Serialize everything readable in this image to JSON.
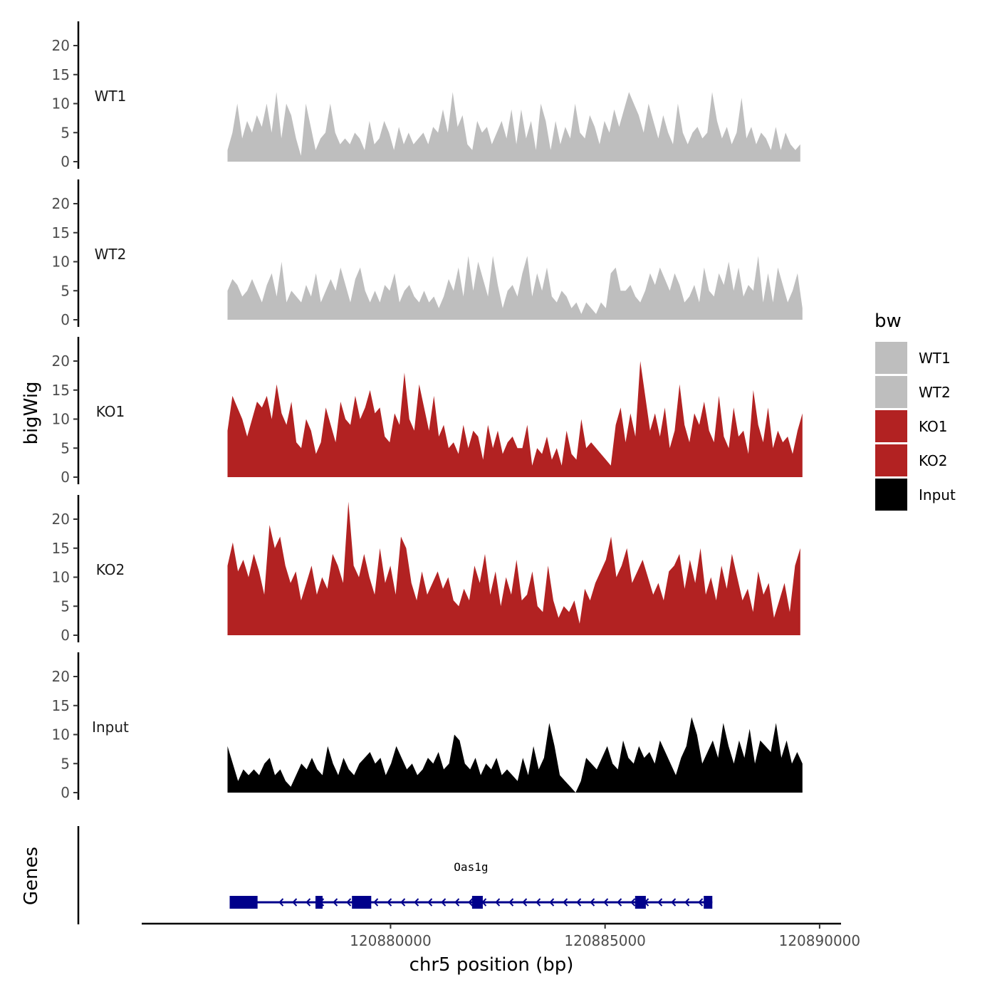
{
  "chart_data": {
    "type": "area",
    "title": "",
    "xlabel": "chr5 position (bp)",
    "ylabel": "bigWig",
    "genes_label": "Genes",
    "xlim": [
      120874200,
      120890500
    ],
    "ylim": [
      0,
      24
    ],
    "x_ticks": [
      120880000,
      120885000,
      120890000
    ],
    "x_tick_labels": [
      "120880000",
      "120885000",
      "120890000"
    ],
    "y_ticks": [
      0,
      5,
      10,
      15,
      20
    ],
    "y_tick_labels": [
      "0",
      "5",
      "10",
      "15",
      "20"
    ],
    "legend": {
      "title": "bw",
      "position": "right",
      "entries": [
        {
          "label": "WT1",
          "color": "#bebebe"
        },
        {
          "label": "WT2",
          "color": "#bebebe"
        },
        {
          "label": "KO1",
          "color": "#b22222"
        },
        {
          "label": "KO2",
          "color": "#b22222"
        },
        {
          "label": "Input",
          "color": "#000000"
        }
      ]
    },
    "series": [
      {
        "name": "WT1",
        "color": "#bebebe",
        "x_start": 120876200,
        "x_end": 120889550,
        "values": [
          2,
          5,
          10,
          4,
          7,
          5,
          8,
          6,
          10,
          5,
          12,
          4,
          10,
          8,
          4,
          1,
          10,
          6,
          2,
          4,
          5,
          10,
          5,
          3,
          4,
          3,
          5,
          4,
          2,
          7,
          3,
          4,
          7,
          5,
          2,
          6,
          3,
          5,
          3,
          4,
          5,
          3,
          6,
          5,
          9,
          5,
          12,
          6,
          8,
          3,
          2,
          7,
          5,
          6,
          3,
          5,
          7,
          4,
          9,
          3,
          9,
          4,
          7,
          2,
          10,
          7,
          2,
          7,
          3,
          6,
          4,
          10,
          5,
          4,
          8,
          6,
          3,
          7,
          5,
          9,
          6,
          9,
          12,
          10,
          8,
          5,
          10,
          7,
          4,
          8,
          5,
          3,
          10,
          5,
          3,
          5,
          6,
          4,
          5,
          12,
          7,
          4,
          6,
          3,
          5,
          11,
          4,
          6,
          3,
          5,
          4,
          2,
          6,
          2,
          5,
          3,
          2,
          3
        ]
      },
      {
        "name": "WT2",
        "color": "#bebebe",
        "x_start": 120876200,
        "x_end": 120889600,
        "values": [
          5,
          7,
          6,
          4,
          5,
          7,
          5,
          3,
          6,
          8,
          4,
          10,
          3,
          5,
          4,
          3,
          6,
          4,
          8,
          3,
          5,
          7,
          5,
          9,
          6,
          3,
          7,
          9,
          5,
          3,
          5,
          3,
          6,
          5,
          8,
          3,
          5,
          6,
          4,
          3,
          5,
          3,
          4,
          2,
          4,
          7,
          5,
          9,
          4,
          11,
          5,
          10,
          7,
          4,
          11,
          6,
          2,
          5,
          6,
          4,
          8,
          11,
          4,
          8,
          5,
          9,
          4,
          3,
          5,
          4,
          2,
          3,
          1,
          3,
          2,
          1,
          3,
          2,
          8,
          9,
          5,
          5,
          6,
          4,
          3,
          5,
          8,
          6,
          9,
          7,
          5,
          8,
          6,
          3,
          4,
          6,
          3,
          9,
          5,
          4,
          8,
          6,
          10,
          5,
          9,
          4,
          6,
          5,
          11,
          3,
          8,
          3,
          9,
          6,
          3,
          5,
          8,
          2
        ]
      },
      {
        "name": "KO1",
        "color": "#b22222",
        "x_start": 120876200,
        "x_end": 120889600,
        "values": [
          8,
          14,
          12,
          10,
          7,
          10,
          13,
          12,
          14,
          10,
          16,
          11,
          9,
          13,
          6,
          5,
          10,
          8,
          4,
          6,
          12,
          9,
          6,
          13,
          10,
          9,
          14,
          10,
          12,
          15,
          11,
          12,
          7,
          6,
          11,
          9,
          18,
          10,
          8,
          16,
          12,
          8,
          14,
          7,
          9,
          5,
          6,
          4,
          9,
          5,
          8,
          7,
          3,
          9,
          5,
          8,
          4,
          6,
          7,
          5,
          5,
          9,
          2,
          5,
          4,
          7,
          3,
          5,
          2,
          8,
          4,
          3,
          10,
          5,
          6,
          5,
          4,
          3,
          2,
          9,
          12,
          6,
          11,
          7,
          20,
          14,
          8,
          11,
          7,
          12,
          5,
          8,
          16,
          9,
          6,
          11,
          9,
          13,
          8,
          6,
          14,
          7,
          5,
          12,
          7,
          8,
          4,
          15,
          9,
          6,
          12,
          5,
          8,
          6,
          7,
          4,
          8,
          11
        ]
      },
      {
        "name": "KO2",
        "color": "#b22222",
        "x_start": 120876200,
        "x_end": 120889550,
        "values": [
          12,
          16,
          11,
          13,
          10,
          14,
          11,
          7,
          19,
          15,
          17,
          12,
          9,
          11,
          6,
          9,
          12,
          7,
          10,
          8,
          14,
          12,
          9,
          23,
          12,
          10,
          14,
          10,
          7,
          15,
          9,
          12,
          7,
          17,
          15,
          9,
          6,
          11,
          7,
          9,
          11,
          8,
          10,
          6,
          5,
          8,
          6,
          12,
          9,
          14,
          7,
          11,
          5,
          10,
          7,
          13,
          6,
          7,
          11,
          5,
          4,
          12,
          6,
          3,
          5,
          4,
          6,
          2,
          8,
          6,
          9,
          11,
          13,
          17,
          10,
          12,
          15,
          9,
          11,
          13,
          10,
          7,
          9,
          6,
          11,
          12,
          14,
          8,
          13,
          9,
          15,
          7,
          10,
          6,
          12,
          8,
          14,
          10,
          6,
          8,
          4,
          11,
          7,
          9,
          3,
          6,
          9,
          4,
          12,
          15
        ]
      },
      {
        "name": "Input",
        "color": "#000000",
        "x_start": 120876200,
        "x_end": 120889600,
        "values": [
          8,
          5,
          2,
          4,
          3,
          4,
          3,
          5,
          6,
          3,
          4,
          2,
          1,
          3,
          5,
          4,
          6,
          4,
          3,
          8,
          5,
          3,
          6,
          4,
          3,
          5,
          6,
          7,
          5,
          6,
          3,
          5,
          8,
          6,
          4,
          5,
          3,
          4,
          6,
          5,
          7,
          4,
          5,
          10,
          9,
          5,
          4,
          6,
          3,
          5,
          4,
          6,
          3,
          4,
          3,
          2,
          6,
          3,
          8,
          4,
          6,
          12,
          8,
          3,
          2,
          1,
          0,
          2,
          6,
          5,
          4,
          6,
          8,
          5,
          4,
          9,
          6,
          5,
          8,
          6,
          7,
          5,
          9,
          7,
          5,
          3,
          6,
          8,
          13,
          10,
          5,
          7,
          9,
          6,
          12,
          8,
          5,
          9,
          6,
          11,
          5,
          9,
          8,
          7,
          12,
          6,
          9,
          5,
          7,
          5
        ]
      }
    ],
    "gene_track": {
      "gene": "Oas1g",
      "strand": "-",
      "start": 120876250,
      "end": 120887500,
      "exons": [
        [
          120876250,
          120876900
        ],
        [
          120878250,
          120878400
        ],
        [
          120879100,
          120879550
        ],
        [
          120881900,
          120882150
        ],
        [
          120885700,
          120885950
        ],
        [
          120887300,
          120887500
        ]
      ]
    }
  }
}
